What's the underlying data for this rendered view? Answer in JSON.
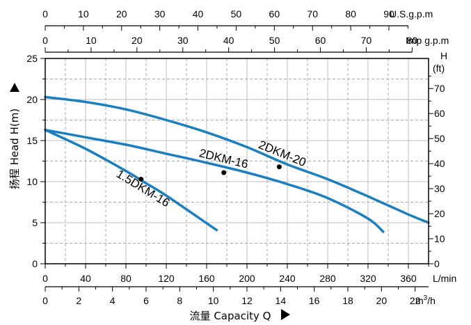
{
  "chart_data": {
    "type": "line",
    "title": "",
    "xlabel": "流量 Capacity Q",
    "ylabel": "扬程 Head H(m)",
    "y2label_top": "H",
    "y2label_unit": "(ft)",
    "grid": true,
    "colors": {
      "curve": "#1a7fc1",
      "grid_dash": "#a9a9a9",
      "grid_solid": "#bdbdbd",
      "axis": "#000000",
      "point": "#000000"
    },
    "x_axes": {
      "usgpm": {
        "unit": "U.S.g.p.m",
        "range": [
          0,
          100
        ],
        "ticks": [
          "0",
          "10",
          "20",
          "30",
          "40",
          "50",
          "60",
          "70",
          "80",
          "90"
        ],
        "tick_values": [
          0,
          10,
          20,
          30,
          40,
          50,
          60,
          70,
          80,
          90
        ]
      },
      "impgpm": {
        "unit": "Imp g.p.m",
        "ticks": [
          "0",
          "10",
          "20",
          "30",
          "40",
          "50",
          "60",
          "70",
          "80"
        ],
        "tick_values": [
          0,
          10,
          20,
          30,
          40,
          50,
          60,
          70,
          80
        ]
      },
      "lmin": {
        "unit": "L/min",
        "range": [
          0,
          380
        ],
        "ticks": [
          "0",
          "40",
          "80",
          "120",
          "160",
          "200",
          "240",
          "280",
          "320",
          "360"
        ],
        "tick_values": [
          0,
          40,
          80,
          120,
          160,
          200,
          240,
          280,
          320,
          360
        ]
      },
      "m3h": {
        "unit_base": "m",
        "unit_sup": "3",
        "unit_tail": "/h",
        "ticks": [
          "0",
          "2",
          "4",
          "6",
          "8",
          "10",
          "12",
          "14",
          "16",
          "18",
          "20",
          "22"
        ],
        "tick_values": [
          0,
          2,
          4,
          6,
          8,
          10,
          12,
          14,
          16,
          18,
          20,
          22
        ]
      }
    },
    "y_axes": {
      "m": {
        "range": [
          0,
          25
        ],
        "ticks": [
          "0",
          "5",
          "10",
          "15",
          "20",
          "25"
        ],
        "tick_values": [
          0,
          5,
          10,
          15,
          20,
          25
        ]
      },
      "ft": {
        "ticks": [
          "0",
          "10",
          "20",
          "30",
          "40",
          "50",
          "60",
          "70"
        ],
        "tick_values": [
          0,
          10,
          20,
          30,
          40,
          50,
          60,
          70
        ]
      }
    },
    "series": [
      {
        "name": "1.5DKM-16",
        "x_lmin": [
          0,
          40,
          80,
          100,
          120,
          170
        ],
        "y_m": [
          16.3,
          14.0,
          11.3,
          9.8,
          8.3,
          4.1
        ],
        "marker_x_lmin": 95,
        "marker_y_m": 10.3
      },
      {
        "name": "2DKM-16",
        "x_lmin": [
          0,
          40,
          80,
          120,
          160,
          200,
          240,
          280,
          320,
          335
        ],
        "y_m": [
          16.3,
          15.4,
          14.5,
          13.4,
          12.3,
          11.1,
          9.7,
          8.0,
          5.5,
          3.9
        ],
        "marker_x_lmin": 177,
        "marker_y_m": 11.1
      },
      {
        "name": "2DKM-20",
        "x_lmin": [
          0,
          40,
          80,
          120,
          160,
          200,
          240,
          280,
          320,
          360,
          380
        ],
        "y_m": [
          20.3,
          19.7,
          18.8,
          17.5,
          16.0,
          14.2,
          12.1,
          10.3,
          8.2,
          6.0,
          5.0
        ],
        "marker_x_lmin": 232,
        "marker_y_m": 11.8
      }
    ]
  }
}
